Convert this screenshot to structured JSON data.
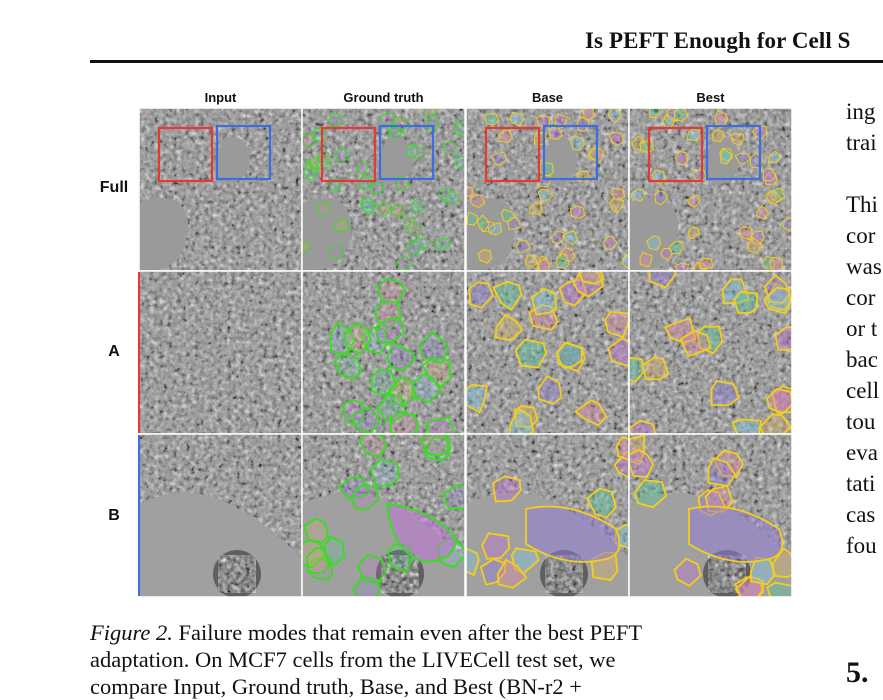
{
  "header": {
    "running_title": "Is PEFT Enough for Cell S"
  },
  "figure": {
    "columns": [
      "Input",
      "Ground truth",
      "Base",
      "Best"
    ],
    "rows": [
      "Full",
      "A",
      "B"
    ],
    "colors": {
      "box_a": "#e53935",
      "box_b": "#3b6fe0",
      "ground_truth_outline": "#33e01b",
      "prediction_outline": "#f3cf1a",
      "cell_fills": [
        "#c070d8",
        "#52c79a",
        "#8f7ad8",
        "#e08aa0",
        "#7ec8e3",
        "#d9b36a"
      ]
    }
  },
  "caption": {
    "label": "Figure 2.",
    "lines": [
      "Failure modes that remain even after the best PEFT",
      "adaptation. On MCF7 cells from the LIVECell test set, we",
      "compare Input, Ground truth, Base, and Best (BN-r2 +"
    ]
  },
  "right_column": {
    "lines": [
      "ing",
      "trai",
      "",
      "Thi",
      "cor",
      "was",
      "cor",
      "or t",
      "bac",
      "cell",
      "tou",
      "eva",
      "tati",
      "cas",
      "fou"
    ],
    "section_heading": "5. "
  }
}
